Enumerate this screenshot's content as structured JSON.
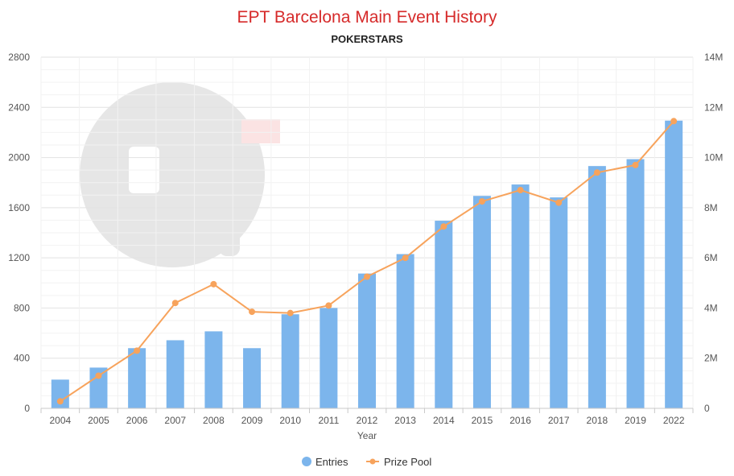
{
  "colors": {
    "title": "#d62a2a",
    "subtitle": "#222222",
    "bar": "#7cb5ec",
    "line": "#f7a35c",
    "grid_major": "#e2e2e2",
    "grid_minor": "#f2f2f2",
    "watermark": "#e6e6e6",
    "watermark_accent": "#fbe3e3"
  },
  "legend": {
    "entries_label": "Entries",
    "prize_label": "Prize Pool",
    "entries_icon": "circle-marker-icon",
    "prize_icon": "line-dot-marker-icon"
  },
  "chart_data": {
    "type": "bar",
    "title": "EPT Barcelona Main Event History",
    "subtitle": "POKERSTARS",
    "xlabel": "Year",
    "ylabel": "",
    "ylim": [
      0,
      2800
    ],
    "y2lim": [
      0,
      14000000
    ],
    "grid": true,
    "legend_position": "bottom-center",
    "categories": [
      "2004",
      "2005",
      "2006",
      "2007",
      "2008",
      "2009",
      "2010",
      "2011",
      "2012",
      "2013",
      "2014",
      "2015",
      "2016",
      "2017",
      "2018",
      "2019",
      "2022"
    ],
    "y_ticks": [
      0,
      400,
      800,
      1200,
      1600,
      2000,
      2400,
      2800
    ],
    "y_tick_labels": [
      "0",
      "400",
      "800",
      "1200",
      "1600",
      "2000",
      "2400",
      "2800"
    ],
    "y2_ticks": [
      0,
      2000000,
      4000000,
      6000000,
      8000000,
      10000000,
      12000000,
      14000000
    ],
    "y2_tick_labels": [
      "0",
      "2M",
      "4M",
      "6M",
      "8M",
      "10M",
      "12M",
      "14M"
    ],
    "series": [
      {
        "name": "Entries",
        "type": "bar",
        "axis": "left",
        "values": [
          229,
          325,
          480,
          543,
          614,
          480,
          750,
          800,
          1075,
          1230,
          1496,
          1694,
          1785,
          1682,
          1932,
          1987,
          2294
        ]
      },
      {
        "name": "Prize Pool",
        "type": "line",
        "axis": "right",
        "values": [
          280000,
          1300000,
          2300000,
          4200000,
          4950000,
          3850000,
          3800000,
          4100000,
          5250000,
          6000000,
          7250000,
          8250000,
          8700000,
          8200000,
          9400000,
          9700000,
          11450000
        ]
      }
    ]
  }
}
